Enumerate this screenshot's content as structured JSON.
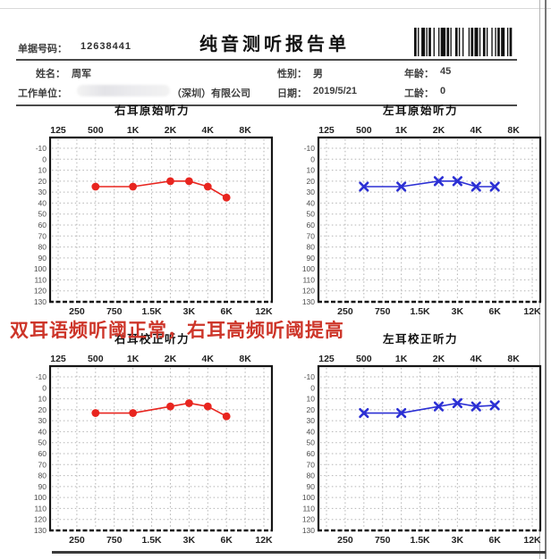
{
  "header": {
    "doc_number_label": "单据号码：",
    "doc_number": "12638441",
    "title": "纯音测听报告单",
    "barcode": "barcode-icon",
    "fields": {
      "name_label": "姓名：",
      "name": "周军",
      "gender_label": "性别：",
      "gender": "男",
      "age_label": "年龄：",
      "age": "45",
      "company_label": "工作单位：",
      "company_suffix": "（深圳）有限公司",
      "date_label": "日期：",
      "date": "2019/5/21",
      "service_years_label": "工龄：",
      "service_years": "0"
    }
  },
  "annotation": {
    "text": "双耳语频听阈正常，右耳高频听阈提高",
    "color": "#cd3529"
  },
  "chart_data": [
    {
      "type": "line",
      "title": "右耳原始听力",
      "ear": "right",
      "stage": "original",
      "marker": "circle",
      "color": "#e8251f",
      "x": [
        "500",
        "1K",
        "2K",
        "3K",
        "4K",
        "6K"
      ],
      "values": [
        25,
        25,
        20,
        20,
        25,
        35
      ],
      "x_top_labels": [
        "125",
        "500",
        "1K",
        "2K",
        "4K",
        "8K"
      ],
      "x_bottom_labels": [
        "250",
        "750",
        "1.5K",
        "3K",
        "6K",
        "12K"
      ],
      "ylim": [
        -10,
        130
      ],
      "y_step": 10,
      "grid": "dotted"
    },
    {
      "type": "line",
      "title": "左耳原始听力",
      "ear": "left",
      "stage": "original",
      "marker": "x",
      "color": "#2b2fd4",
      "x": [
        "500",
        "1K",
        "2K",
        "3K",
        "4K",
        "6K"
      ],
      "values": [
        25,
        25,
        20,
        20,
        25,
        25
      ],
      "x_top_labels": [
        "125",
        "500",
        "1K",
        "2K",
        "4K",
        "8K"
      ],
      "x_bottom_labels": [
        "250",
        "750",
        "1.5K",
        "3K",
        "6K",
        "12K"
      ],
      "ylim": [
        -10,
        130
      ],
      "y_step": 10,
      "grid": "dotted"
    },
    {
      "type": "line",
      "title": "右耳校正听力",
      "ear": "right",
      "stage": "corrected",
      "marker": "circle",
      "color": "#e8251f",
      "x": [
        "500",
        "1K",
        "2K",
        "3K",
        "4K",
        "6K"
      ],
      "values": [
        23,
        23,
        17,
        14,
        17,
        26
      ],
      "x_top_labels": [
        "125",
        "500",
        "1K",
        "2K",
        "4K",
        "8K"
      ],
      "x_bottom_labels": [
        "250",
        "750",
        "1.5K",
        "3K",
        "6K",
        "12K"
      ],
      "ylim": [
        -10,
        130
      ],
      "y_step": 10,
      "grid": "dotted"
    },
    {
      "type": "line",
      "title": "左耳校正听力",
      "ear": "left",
      "stage": "corrected",
      "marker": "x",
      "color": "#2b2fd4",
      "x": [
        "500",
        "1K",
        "2K",
        "3K",
        "4K",
        "6K"
      ],
      "values": [
        23,
        23,
        17,
        14,
        17,
        16
      ],
      "x_top_labels": [
        "125",
        "500",
        "1K",
        "2K",
        "4K",
        "8K"
      ],
      "x_bottom_labels": [
        "250",
        "750",
        "1.5K",
        "3K",
        "6K",
        "12K"
      ],
      "ylim": [
        -10,
        130
      ],
      "y_step": 10,
      "grid": "dotted"
    }
  ]
}
